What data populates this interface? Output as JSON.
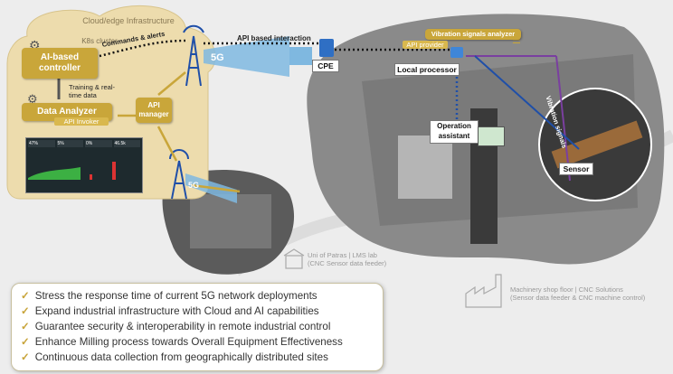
{
  "cloud": {
    "title": "Cloud/edge Infrastructure",
    "cluster": "K8s cluster"
  },
  "nodes": {
    "ai_controller": "AI-based controller",
    "data_analyzer": "Data Analyzer",
    "api_invoker": "API Invoker",
    "api_manager": "API manager",
    "cpe": "CPE",
    "local_processor": "Local processor",
    "vibration_analyzer": "Vibration signals analyzer",
    "api_provider": "API provider",
    "operation_assistant": "Operation assistant",
    "sensor": "Sensor"
  },
  "links": {
    "commands": "Commands & alerts",
    "training": "Training & real-time data",
    "api_interaction": "API based interaction",
    "vibration_signals": "Vibration signals",
    "fiveg_top": "5G",
    "fiveg_bottom": "5G"
  },
  "dashboard": {
    "stats": [
      "47%",
      "5%",
      "0%",
      "46.5k"
    ]
  },
  "sites": {
    "patras_line1": "Uni of Patras | LMS lab",
    "patras_line2": "(CNC Sensor data feeder)",
    "shop_line1": "Machinery shop floor | CNC Solutions",
    "shop_line2": "(Sensor data feeder & CNC machine control)"
  },
  "bullets": [
    "Stress the response time of current 5G network deployments",
    "Expand industrial infrastructure with Cloud and AI capabilities",
    "Guarantee security & interoperability in remote industrial control",
    "Enhance Milling process towards Overall Equipment Effectiveness",
    "Continuous data collection from geographically distributed sites"
  ],
  "colors": {
    "gold": "#c9a63a",
    "cloud": "#eddcad",
    "link_blue": "#1f4fa8",
    "fiveg_blue": "#7fb8e0",
    "arrow_purple": "#7a3fa0"
  }
}
